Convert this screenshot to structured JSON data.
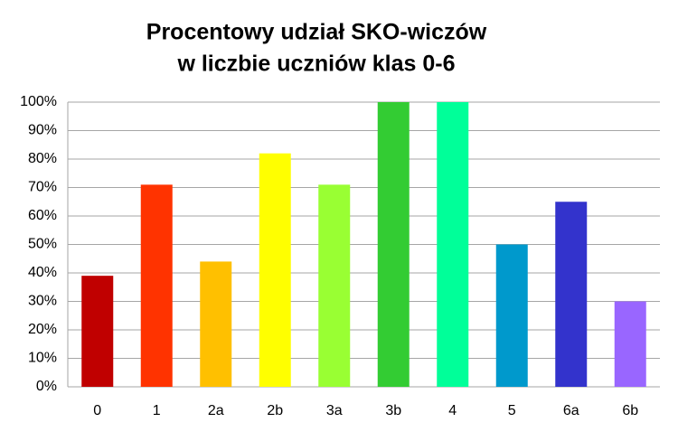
{
  "chart_data": {
    "type": "bar",
    "title": [
      "Procentowy udział SKO-wiczów",
      "w liczbie uczniów klas 0-6"
    ],
    "categories": [
      "0",
      "1",
      "2a",
      "2b",
      "3a",
      "3b",
      "4",
      "5",
      "6a",
      "6b"
    ],
    "values": [
      39,
      71,
      44,
      82,
      71,
      100,
      100,
      50,
      65,
      30
    ],
    "colors": [
      "#c00000",
      "#ff3300",
      "#ffc000",
      "#ffff00",
      "#99ff33",
      "#33cc33",
      "#00ff99",
      "#0099cc",
      "#3333cc",
      "#9966ff"
    ],
    "ylim": [
      0,
      100
    ],
    "yticks": [
      {
        "value": 0,
        "label": "0%"
      },
      {
        "value": 10,
        "label": "10%"
      },
      {
        "value": 20,
        "label": "20%"
      },
      {
        "value": 30,
        "label": "30%"
      },
      {
        "value": 40,
        "label": "40%"
      },
      {
        "value": 50,
        "label": "50%"
      },
      {
        "value": 60,
        "label": "60%"
      },
      {
        "value": 70,
        "label": "70%"
      },
      {
        "value": 80,
        "label": "80%"
      },
      {
        "value": 90,
        "label": "90%"
      },
      {
        "value": 100,
        "label": "100%"
      }
    ],
    "grid": true
  }
}
